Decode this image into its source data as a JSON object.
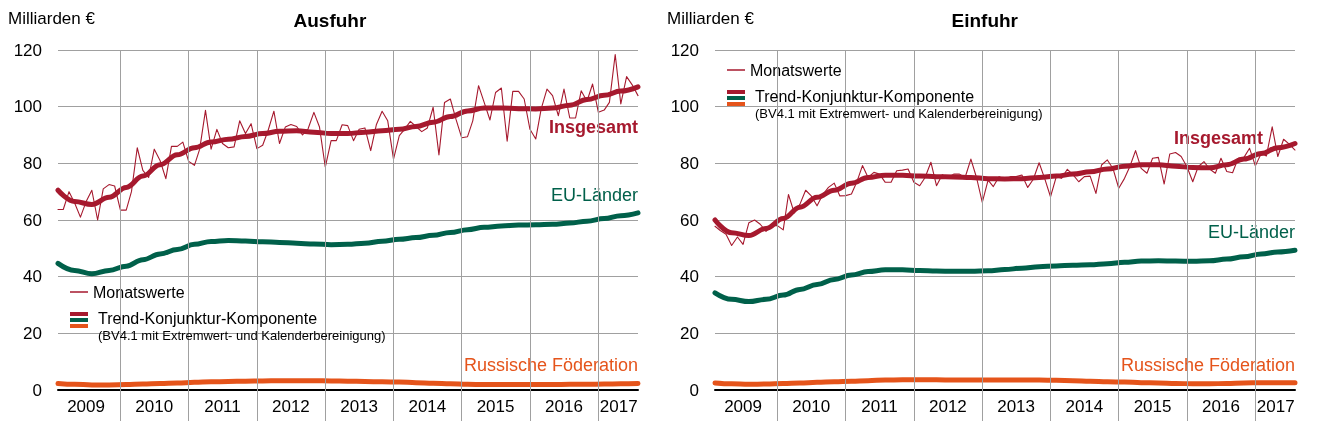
{
  "chart_data": [
    {
      "type": "line",
      "title": "Ausfuhr",
      "ylabel": "Milliarden €",
      "xlim": [
        "2009-02",
        "2017-08"
      ],
      "ylim": [
        0,
        120
      ],
      "yticks": [
        0,
        20,
        40,
        60,
        80,
        100,
        120
      ],
      "xticks": [
        {
          "value": "2009-07",
          "label": "2009"
        },
        {
          "value": "2010",
          "label": null
        },
        {
          "value": "2010-07",
          "label": "2010"
        },
        {
          "value": "2011",
          "label": null
        },
        {
          "value": "2011-07",
          "label": "2011"
        },
        {
          "value": "2012",
          "label": null
        },
        {
          "value": "2012-07",
          "label": "2012"
        },
        {
          "value": "2013",
          "label": null
        },
        {
          "value": "2013-07",
          "label": "2013"
        },
        {
          "value": "2014",
          "label": null
        },
        {
          "value": "2014-07",
          "label": "2014"
        },
        {
          "value": "2015",
          "label": null
        },
        {
          "value": "2015-07",
          "label": "2015"
        },
        {
          "value": "2016",
          "label": null
        },
        {
          "value": "2016-07",
          "label": "2016"
        },
        {
          "value": "2017",
          "label": null
        },
        {
          "value": "2017-04-20",
          "label": "2017"
        }
      ],
      "grid": true,
      "legend": "bottom left",
      "marker": "none",
      "line_style": "solid",
      "annotations": [
        "Trend-Konjunktur-Komponente",
        "(BV4.1 mit Extremwert- und Kalenderbereinigung)"
      ],
      "x": [
        "2009-02",
        "2009-03",
        "2009-04",
        "2009-05",
        "2009-06",
        "2009-07",
        "2009-08",
        "2009-09",
        "2009-10",
        "2009-11",
        "2009-12",
        "2010-01",
        "2010-02",
        "2010-03",
        "2010-04",
        "2010-05",
        "2010-06",
        "2010-07",
        "2010-08",
        "2010-09",
        "2010-10",
        "2010-11",
        "2010-12",
        "2011-01",
        "2011-02",
        "2011-03",
        "2011-04",
        "2011-05",
        "2011-06",
        "2011-07",
        "2011-08",
        "2011-09",
        "2011-10",
        "2011-11",
        "2011-12",
        "2012-01",
        "2012-02",
        "2012-03",
        "2012-04",
        "2012-05",
        "2012-06",
        "2012-07",
        "2012-08",
        "2012-09",
        "2012-10",
        "2012-11",
        "2012-12",
        "2013-01",
        "2013-02",
        "2013-03",
        "2013-04",
        "2013-05",
        "2013-06",
        "2013-07",
        "2013-08",
        "2013-09",
        "2013-10",
        "2013-11",
        "2013-12",
        "2014-01",
        "2014-02",
        "2014-03",
        "2014-04",
        "2014-05",
        "2014-06",
        "2014-07",
        "2014-08",
        "2014-09",
        "2014-10",
        "2014-11",
        "2014-12",
        "2015-01",
        "2015-02",
        "2015-03",
        "2015-04",
        "2015-05",
        "2015-06",
        "2015-07",
        "2015-08",
        "2015-09",
        "2015-10",
        "2015-11",
        "2015-12",
        "2016-01",
        "2016-02",
        "2016-03",
        "2016-04",
        "2016-05",
        "2016-06",
        "2016-07",
        "2016-08",
        "2016-09",
        "2016-10",
        "2016-11",
        "2016-12",
        "2017-01",
        "2017-02",
        "2017-03",
        "2017-04",
        "2017-05",
        "2017-06",
        "2017-07",
        "2017-08"
      ],
      "series": [
        {
          "name": "Monatswerte",
          "color": "#a6192e",
          "values": [
            63.7,
            63.7,
            70,
            66,
            61,
            66.4,
            70.5,
            60,
            71,
            72.5,
            72,
            63.5,
            63.5,
            70,
            85.5,
            77.5,
            75,
            85,
            81,
            74.6,
            86,
            86,
            87.5,
            80.7,
            79.3,
            85,
            98.7,
            85,
            92,
            87,
            85.5,
            85.8,
            95,
            90.5,
            94,
            85.2,
            86.4,
            91.6,
            98.4,
            87,
            92.8,
            93.7,
            93,
            90,
            92.2,
            98,
            92.8,
            78.7,
            88,
            88,
            93.6,
            93.3,
            88,
            92,
            92.5,
            84.5,
            93.6,
            98.4,
            95,
            81.5,
            89.8,
            92,
            94.8,
            93,
            91.2,
            92.5,
            99.8,
            83,
            101.5,
            102.7,
            95.6,
            89,
            89.4,
            95,
            107.4,
            101.5,
            95.3,
            105,
            106.6,
            87.8,
            105.4,
            105.4,
            102.7,
            92,
            88.6,
            99.2,
            106.2,
            103.9,
            96.8,
            106.2,
            96,
            96,
            105.6,
            101.9,
            108,
            98,
            98.8,
            101.5,
            118.4,
            101,
            110.6,
            107.7,
            103.9
          ]
        },
        {
          "name": "Insgesamt",
          "color": "#a6192e",
          "x": [
            "2009-02",
            "2009-05",
            "2009-08",
            "2009-11",
            "2010-02",
            "2010-05",
            "2010-08",
            "2010-11",
            "2011-02",
            "2011-05",
            "2011-08",
            "2011-11",
            "2012-02",
            "2012-05",
            "2012-08",
            "2012-11",
            "2013-02",
            "2013-05",
            "2013-08",
            "2013-11",
            "2014-02",
            "2014-05",
            "2014-08",
            "2014-11",
            "2015-02",
            "2015-05",
            "2015-08",
            "2015-11",
            "2016-02",
            "2016-05",
            "2016-08",
            "2016-11",
            "2017-02",
            "2017-05",
            "2017-08"
          ],
          "values": [
            70.5,
            66.5,
            65.5,
            68,
            71.5,
            75.5,
            79.5,
            83,
            85.5,
            87.5,
            88.5,
            89.5,
            90.5,
            91.3,
            91.5,
            91,
            90.5,
            90.5,
            91,
            91.5,
            92,
            93,
            94.5,
            96.5,
            98.5,
            99.5,
            99.5,
            99.3,
            99.2,
            99.5,
            100.5,
            102.5,
            104,
            105.5,
            107
          ]
        },
        {
          "name": "EU-Länder",
          "color": "#00604a",
          "x": [
            "2009-02",
            "2009-05",
            "2009-08",
            "2009-11",
            "2010-02",
            "2010-05",
            "2010-08",
            "2010-11",
            "2011-02",
            "2011-05",
            "2011-08",
            "2011-11",
            "2012-02",
            "2012-05",
            "2012-08",
            "2012-11",
            "2013-02",
            "2013-05",
            "2013-08",
            "2013-11",
            "2014-02",
            "2014-05",
            "2014-08",
            "2014-11",
            "2015-02",
            "2015-05",
            "2015-08",
            "2015-11",
            "2016-02",
            "2016-05",
            "2016-08",
            "2016-11",
            "2017-02",
            "2017-05",
            "2017-08"
          ],
          "values": [
            44.7,
            42.2,
            41,
            42.2,
            43.7,
            46,
            48,
            49.6,
            51.4,
            52.4,
            52.8,
            52.6,
            52.3,
            52.1,
            51.8,
            51.5,
            51.3,
            51.4,
            51.8,
            52.5,
            53.2,
            53.8,
            54.6,
            55.6,
            56.6,
            57.4,
            57.9,
            58.2,
            58.3,
            58.5,
            58.9,
            59.6,
            60.5,
            61.5,
            62.5
          ]
        },
        {
          "name": "Russische Föderation",
          "color": "#e5541b",
          "x": [
            "2009-02",
            "2009-05",
            "2009-08",
            "2009-11",
            "2010-02",
            "2010-05",
            "2010-08",
            "2010-11",
            "2011-02",
            "2011-05",
            "2011-08",
            "2011-11",
            "2012-02",
            "2012-05",
            "2012-08",
            "2012-11",
            "2013-02",
            "2013-05",
            "2013-08",
            "2013-11",
            "2014-02",
            "2014-05",
            "2014-08",
            "2014-11",
            "2015-02",
            "2015-05",
            "2015-08",
            "2015-11",
            "2016-02",
            "2016-05",
            "2016-08",
            "2016-11",
            "2017-02",
            "2017-05",
            "2017-08"
          ],
          "values": [
            2.3,
            2,
            1.8,
            1.8,
            1.9,
            2.1,
            2.3,
            2.5,
            2.7,
            2.9,
            3,
            3.1,
            3.2,
            3.3,
            3.3,
            3.3,
            3.2,
            3.1,
            3,
            2.9,
            2.8,
            2.6,
            2.4,
            2.2,
            2,
            1.9,
            1.9,
            1.9,
            1.9,
            1.9,
            2,
            2,
            2.1,
            2.2,
            2.3
          ]
        }
      ]
    },
    {
      "type": "line",
      "title": "Einfuhr",
      "ylabel": "Milliarden €",
      "xlim": [
        "2009-02",
        "2017-08"
      ],
      "ylim": [
        0,
        120
      ],
      "yticks": [
        0,
        20,
        40,
        60,
        80,
        100,
        120
      ],
      "xticks": [
        {
          "value": "2009-07",
          "label": "2009"
        },
        {
          "value": "2010",
          "label": null
        },
        {
          "value": "2010-07",
          "label": "2010"
        },
        {
          "value": "2011",
          "label": null
        },
        {
          "value": "2011-07",
          "label": "2011"
        },
        {
          "value": "2012",
          "label": null
        },
        {
          "value": "2012-07",
          "label": "2012"
        },
        {
          "value": "2013",
          "label": null
        },
        {
          "value": "2013-07",
          "label": "2013"
        },
        {
          "value": "2014",
          "label": null
        },
        {
          "value": "2014-07",
          "label": "2014"
        },
        {
          "value": "2015",
          "label": null
        },
        {
          "value": "2015-07",
          "label": "2015"
        },
        {
          "value": "2016",
          "label": null
        },
        {
          "value": "2016-07",
          "label": "2016"
        },
        {
          "value": "2017",
          "label": null
        },
        {
          "value": "2017-04-20",
          "label": "2017"
        }
      ],
      "grid": true,
      "legend": "top left",
      "marker": "none",
      "line_style": "solid",
      "annotations": [
        "Trend-Konjunktur-Komponente",
        "(BV4.1 mit Extremwert- und Kalenderbereinigung)"
      ],
      "x": [
        "2009-02",
        "2009-03",
        "2009-04",
        "2009-05",
        "2009-06",
        "2009-07",
        "2009-08",
        "2009-09",
        "2009-10",
        "2009-11",
        "2009-12",
        "2010-01",
        "2010-02",
        "2010-03",
        "2010-04",
        "2010-05",
        "2010-06",
        "2010-07",
        "2010-08",
        "2010-09",
        "2010-10",
        "2010-11",
        "2010-12",
        "2011-01",
        "2011-02",
        "2011-03",
        "2011-04",
        "2011-05",
        "2011-06",
        "2011-07",
        "2011-08",
        "2011-09",
        "2011-10",
        "2011-11",
        "2011-12",
        "2012-01",
        "2012-02",
        "2012-03",
        "2012-04",
        "2012-05",
        "2012-06",
        "2012-07",
        "2012-08",
        "2012-09",
        "2012-10",
        "2012-11",
        "2012-12",
        "2013-01",
        "2013-02",
        "2013-03",
        "2013-04",
        "2013-05",
        "2013-06",
        "2013-07",
        "2013-08",
        "2013-09",
        "2013-10",
        "2013-11",
        "2013-12",
        "2014-01",
        "2014-02",
        "2014-03",
        "2014-04",
        "2014-05",
        "2014-06",
        "2014-07",
        "2014-08",
        "2014-09",
        "2014-10",
        "2014-11",
        "2014-12",
        "2015-01",
        "2015-02",
        "2015-03",
        "2015-04",
        "2015-05",
        "2015-06",
        "2015-07",
        "2015-08",
        "2015-09",
        "2015-10",
        "2015-11",
        "2015-12",
        "2016-01",
        "2016-02",
        "2016-03",
        "2016-04",
        "2016-05",
        "2016-06",
        "2016-07",
        "2016-08",
        "2016-09",
        "2016-10",
        "2016-11",
        "2016-12",
        "2017-01",
        "2017-02",
        "2017-03",
        "2017-04",
        "2017-05",
        "2017-06",
        "2017-07",
        "2017-08"
      ],
      "series": [
        {
          "name": "Monatswerte",
          "color": "#a6192e",
          "values": [
            57.8,
            56.3,
            55,
            51,
            54,
            51.4,
            59,
            60,
            58.5,
            56,
            58,
            58,
            56.5,
            69,
            62.5,
            65.5,
            70.5,
            68.5,
            65,
            69,
            71.5,
            73,
            68.5,
            68.6,
            69.2,
            73.3,
            79.2,
            75,
            76.8,
            76.2,
            73.3,
            73.3,
            77.4,
            77.6,
            78,
            73.3,
            72.1,
            75,
            80.4,
            72.1,
            76,
            75,
            76.2,
            76.2,
            75,
            81.5,
            75,
            66.2,
            74.1,
            71.8,
            75.3,
            74.4,
            75.3,
            75.3,
            75.9,
            71.5,
            74.4,
            80.2,
            74.6,
            68.2,
            75.3,
            74.7,
            77.9,
            76,
            73.5,
            75.3,
            75.5,
            69.4,
            79.4,
            81.2,
            78.2,
            71.2,
            74.7,
            78.8,
            84.5,
            78.2,
            76.5,
            81.8,
            82.1,
            72.7,
            83.3,
            83.8,
            82.4,
            78.8,
            73.5,
            78.8,
            80.6,
            78,
            76.5,
            81.8,
            77.1,
            76.7,
            81.8,
            82.1,
            85.3,
            79.1,
            83.5,
            82.6,
            92.9,
            82.4,
            88.5,
            86.8,
            84.7
          ]
        },
        {
          "name": "Insgesamt",
          "color": "#a6192e",
          "x": [
            "2009-02",
            "2009-05",
            "2009-08",
            "2009-11",
            "2010-02",
            "2010-05",
            "2010-08",
            "2010-11",
            "2011-02",
            "2011-05",
            "2011-08",
            "2011-11",
            "2012-02",
            "2012-05",
            "2012-08",
            "2012-11",
            "2013-02",
            "2013-05",
            "2013-08",
            "2013-11",
            "2014-02",
            "2014-05",
            "2014-08",
            "2014-11",
            "2015-02",
            "2015-05",
            "2015-08",
            "2015-11",
            "2016-02",
            "2016-05",
            "2016-08",
            "2016-11",
            "2017-02",
            "2017-05",
            "2017-08"
          ],
          "values": [
            60,
            55.5,
            54.5,
            57,
            60.5,
            64.5,
            68,
            70.5,
            73,
            75,
            75.8,
            75.8,
            75.5,
            75.3,
            75.2,
            75,
            74.6,
            74.5,
            74.6,
            75,
            75.5,
            76.2,
            77,
            78,
            79,
            79.5,
            79.5,
            79,
            78.5,
            78.4,
            79.5,
            81.5,
            83.5,
            85.5,
            87
          ]
        },
        {
          "name": "EU-Länder",
          "color": "#00604a",
          "x": [
            "2009-02",
            "2009-05",
            "2009-08",
            "2009-11",
            "2010-02",
            "2010-05",
            "2010-08",
            "2010-11",
            "2011-02",
            "2011-05",
            "2011-08",
            "2011-11",
            "2012-02",
            "2012-05",
            "2012-08",
            "2012-11",
            "2013-02",
            "2013-05",
            "2013-08",
            "2013-11",
            "2014-02",
            "2014-05",
            "2014-08",
            "2014-11",
            "2015-02",
            "2015-05",
            "2015-08",
            "2015-11",
            "2016-02",
            "2016-05",
            "2016-08",
            "2016-11",
            "2017-02",
            "2017-05",
            "2017-08"
          ],
          "values": [
            34.3,
            32,
            31.2,
            32,
            33.5,
            35.5,
            37.2,
            39,
            40.6,
            41.8,
            42.4,
            42.4,
            42.2,
            42,
            41.9,
            41.9,
            42.1,
            42.5,
            43,
            43.5,
            43.8,
            44,
            44.2,
            44.6,
            45.1,
            45.5,
            45.6,
            45.5,
            45.4,
            45.6,
            46.2,
            47,
            48,
            48.7,
            49.3
          ]
        },
        {
          "name": "Russische Föderation",
          "color": "#e5541b",
          "x": [
            "2009-02",
            "2009-05",
            "2009-08",
            "2009-11",
            "2010-02",
            "2010-05",
            "2010-08",
            "2010-11",
            "2011-02",
            "2011-05",
            "2011-08",
            "2011-11",
            "2012-02",
            "2012-05",
            "2012-08",
            "2012-11",
            "2013-02",
            "2013-05",
            "2013-08",
            "2013-11",
            "2014-02",
            "2014-05",
            "2014-08",
            "2014-11",
            "2015-02",
            "2015-05",
            "2015-08",
            "2015-11",
            "2016-02",
            "2016-05",
            "2016-08",
            "2016-11",
            "2017-02",
            "2017-05",
            "2017-08"
          ],
          "values": [
            2.5,
            2.2,
            2,
            2.1,
            2.3,
            2.5,
            2.7,
            2.9,
            3.1,
            3.3,
            3.5,
            3.6,
            3.6,
            3.6,
            3.5,
            3.5,
            3.5,
            3.5,
            3.5,
            3.5,
            3.4,
            3.3,
            3.1,
            2.9,
            2.8,
            2.6,
            2.5,
            2.3,
            2.2,
            2.2,
            2.3,
            2.5,
            2.6,
            2.6,
            2.6
          ]
        }
      ]
    }
  ]
}
